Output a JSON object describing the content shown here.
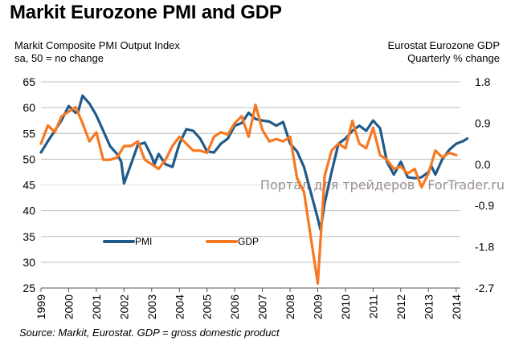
{
  "chart_data": {
    "type": "line",
    "title": "Markit Eurozone PMI and GDP",
    "left_axis_title": [
      "Markit Composite PMI Output Index",
      "sa, 50 = no change"
    ],
    "right_axis_title": [
      "Eurostat Eurozone GDP",
      "Quarterly % change"
    ],
    "source": "Source: Markit, Eurostat. GDP = gross domestic product",
    "watermark": "Портал для трейдеров - ForTrader.ru",
    "x_ticks": [
      "1999",
      "2000",
      "2001",
      "2002",
      "2003",
      "2004",
      "2005",
      "2006",
      "2007",
      "2008",
      "2009",
      "2010",
      "2011",
      "2012",
      "2013",
      "2014"
    ],
    "x_range": [
      1999.0,
      2014.6
    ],
    "y_left": {
      "range": [
        25,
        65
      ],
      "ticks": [
        "25",
        "30",
        "35",
        "40",
        "45",
        "50",
        "55",
        "60",
        "65"
      ],
      "tick_values": [
        25,
        30,
        35,
        40,
        45,
        50,
        55,
        60,
        65
      ]
    },
    "y_right": {
      "range": [
        -2.7,
        1.8
      ],
      "ticks": [
        "1.8",
        "0.9",
        "0.0",
        "-0.9",
        "-1.8",
        "-2.7"
      ],
      "tick_values": [
        1.8,
        0.9,
        0.0,
        -0.9,
        -1.8,
        -2.7
      ]
    },
    "grid": true,
    "legend": {
      "placement": "lower-left",
      "entries": [
        {
          "name": "PMI",
          "color": "#1f5a8a"
        },
        {
          "name": "GDP",
          "color": "#f7781f"
        }
      ]
    },
    "series": [
      {
        "name": "PMI",
        "axis": "left",
        "color": "#1f5a8a",
        "x": [
          1999.0,
          1999.25,
          1999.5,
          1999.75,
          2000.0,
          2000.25,
          2000.35,
          2000.5,
          2000.75,
          2001.0,
          2001.25,
          2001.5,
          2001.75,
          2001.9,
          2002.0,
          2002.25,
          2002.5,
          2002.75,
          2003.0,
          2003.1,
          2003.25,
          2003.5,
          2003.75,
          2004.0,
          2004.25,
          2004.5,
          2004.75,
          2005.0,
          2005.25,
          2005.5,
          2005.75,
          2006.0,
          2006.25,
          2006.5,
          2006.75,
          2007.0,
          2007.25,
          2007.5,
          2007.75,
          2008.0,
          2008.25,
          2008.5,
          2008.75,
          2009.0,
          2009.1,
          2009.25,
          2009.5,
          2009.75,
          2010.0,
          2010.25,
          2010.5,
          2010.75,
          2011.0,
          2011.25,
          2011.5,
          2011.75,
          2012.0,
          2012.25,
          2012.5,
          2012.75,
          2013.0,
          2013.1,
          2013.25,
          2013.5,
          2013.75,
          2014.0,
          2014.25,
          2014.4
        ],
        "values": [
          51.3,
          53.5,
          55.5,
          57.6,
          60.3,
          59.0,
          59.3,
          62.3,
          60.8,
          58.5,
          55.5,
          52.5,
          51.0,
          49.5,
          45.3,
          49.0,
          52.8,
          53.2,
          50.5,
          49.0,
          51.0,
          49.0,
          48.5,
          53.0,
          55.8,
          55.5,
          54.0,
          51.5,
          51.3,
          53.0,
          54.0,
          56.5,
          57.0,
          59.0,
          57.8,
          57.5,
          57.3,
          56.5,
          57.2,
          53.0,
          51.5,
          48.5,
          43.5,
          38.5,
          36.3,
          41.5,
          47.5,
          53.0,
          54.0,
          55.5,
          56.5,
          55.5,
          57.5,
          56.0,
          49.5,
          47.0,
          49.5,
          46.5,
          46.3,
          46.5,
          47.5,
          48.7,
          47.0,
          50.0,
          51.8,
          53.0,
          53.5,
          54.0
        ]
      },
      {
        "name": "GDP",
        "axis": "right",
        "color": "#f7781f",
        "x": [
          1999.0,
          1999.25,
          1999.5,
          1999.75,
          2000.0,
          2000.25,
          2000.5,
          2000.75,
          2001.0,
          2001.25,
          2001.5,
          2001.75,
          2002.0,
          2002.25,
          2002.5,
          2002.75,
          2003.0,
          2003.25,
          2003.5,
          2003.75,
          2004.0,
          2004.25,
          2004.5,
          2004.75,
          2005.0,
          2005.25,
          2005.5,
          2005.75,
          2006.0,
          2006.25,
          2006.5,
          2006.75,
          2007.0,
          2007.25,
          2007.5,
          2007.75,
          2008.0,
          2008.25,
          2008.5,
          2008.75,
          2009.0,
          2009.25,
          2009.5,
          2009.75,
          2010.0,
          2010.25,
          2010.5,
          2010.75,
          2011.0,
          2011.25,
          2011.5,
          2011.75,
          2012.0,
          2012.25,
          2012.5,
          2012.75,
          2013.0,
          2013.25,
          2013.5,
          2013.75,
          2014.0
        ],
        "values": [
          0.45,
          0.85,
          0.7,
          1.05,
          1.15,
          1.25,
          0.9,
          0.5,
          0.7,
          0.1,
          0.1,
          0.15,
          0.4,
          0.4,
          0.5,
          0.1,
          0.0,
          -0.1,
          0.1,
          0.4,
          0.6,
          0.45,
          0.3,
          0.3,
          0.25,
          0.6,
          0.7,
          0.65,
          0.9,
          1.05,
          0.6,
          1.3,
          0.75,
          0.5,
          0.55,
          0.5,
          0.6,
          -0.3,
          -0.6,
          -1.6,
          -2.6,
          -0.25,
          0.3,
          0.45,
          0.35,
          0.95,
          0.45,
          0.35,
          0.8,
          0.2,
          0.1,
          -0.1,
          -0.05,
          -0.2,
          -0.1,
          -0.5,
          -0.2,
          0.3,
          0.15,
          0.25,
          0.2
        ]
      }
    ]
  }
}
